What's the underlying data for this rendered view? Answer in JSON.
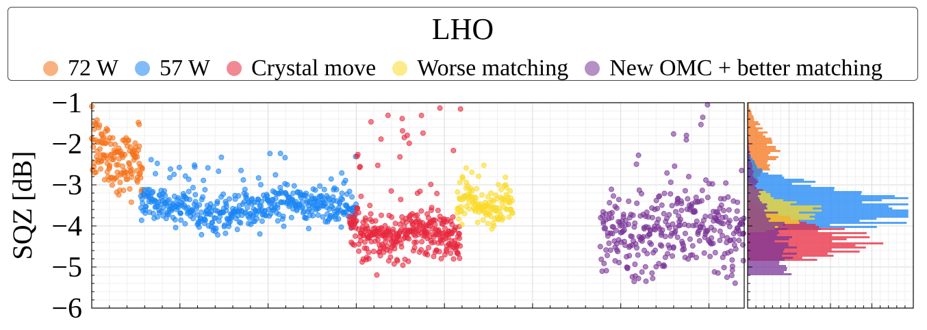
{
  "legend": {
    "title": "LHO",
    "entries": [
      {
        "label": "72 W",
        "color": "#f5731a"
      },
      {
        "label": "57 W",
        "color": "#1a86f5"
      },
      {
        "label": "Crystal move",
        "color": "#e8283e"
      },
      {
        "label": "Worse matching",
        "color": "#fadb2a"
      },
      {
        "label": "New OMC + better matching",
        "color": "#7a3597"
      }
    ]
  },
  "chart_data": [
    {
      "type": "scatter",
      "title": "",
      "xlabel": "",
      "ylabel": "SQZ [dB]",
      "ylim": [
        -6,
        -1
      ],
      "yticks": [
        -1,
        -2,
        -3,
        -4,
        -5,
        -6
      ],
      "ytick_labels": [
        "−1",
        "−2",
        "−3",
        "−4",
        "−5",
        "−6"
      ],
      "xlim": [
        0,
        100
      ],
      "grid": true,
      "series": [
        {
          "name": "72 W",
          "color": "#f5731a",
          "x_range": [
            0,
            7.8
          ],
          "y_mean": -2.2,
          "y_spread": 0.4,
          "y_end": -2.7,
          "count": 150
        },
        {
          "name": "57 W",
          "color": "#1a86f5",
          "x_range": [
            7.5,
            40.5
          ],
          "y_mean": -3.55,
          "y_spread": 0.22,
          "outlier_max": -2.2,
          "count": 480
        },
        {
          "name": "Crystal move",
          "color": "#e8283e",
          "x_range": [
            39.5,
            56.5
          ],
          "y_mean": -4.2,
          "y_spread": 0.3,
          "outlier_max": -1.0,
          "count": 350
        },
        {
          "name": "Worse matching",
          "color": "#fadb2a",
          "x_range": [
            56,
            64.5
          ],
          "y_mean": -3.5,
          "y_spread": 0.25,
          "outlier_max": -2.35,
          "count": 130
        },
        {
          "name": "New OMC + better matching",
          "color": "#7a3597",
          "x_range": [
            78,
            100
          ],
          "y_mean": -4.1,
          "y_spread": 0.5,
          "outlier_max": -1.0,
          "count": 330
        }
      ]
    },
    {
      "type": "histogram",
      "orientation": "horizontal",
      "ylim": [
        -6,
        -1
      ],
      "grid": true,
      "series": [
        {
          "name": "72 W",
          "color": "#f5731a",
          "range": [
            -3.05,
            -1.0
          ],
          "peak": 0.16,
          "mean": -2.2
        },
        {
          "name": "57 W",
          "color": "#1a86f5",
          "range": [
            -4.1,
            -2.2
          ],
          "peak": 1.0,
          "mean": -3.6
        },
        {
          "name": "Crystal move",
          "color": "#e8283e",
          "range": [
            -4.85,
            -3.2
          ],
          "peak": 0.72,
          "mean": -4.4
        },
        {
          "name": "Worse matching",
          "color": "#fadb2a",
          "range": [
            -4.15,
            -2.95
          ],
          "peak": 0.42,
          "mean": -3.65
        },
        {
          "name": "New OMC + better matching",
          "color": "#7a3597",
          "range": [
            -5.2,
            -1.0
          ],
          "peak": 0.25,
          "mean": -4.7
        }
      ]
    }
  ]
}
